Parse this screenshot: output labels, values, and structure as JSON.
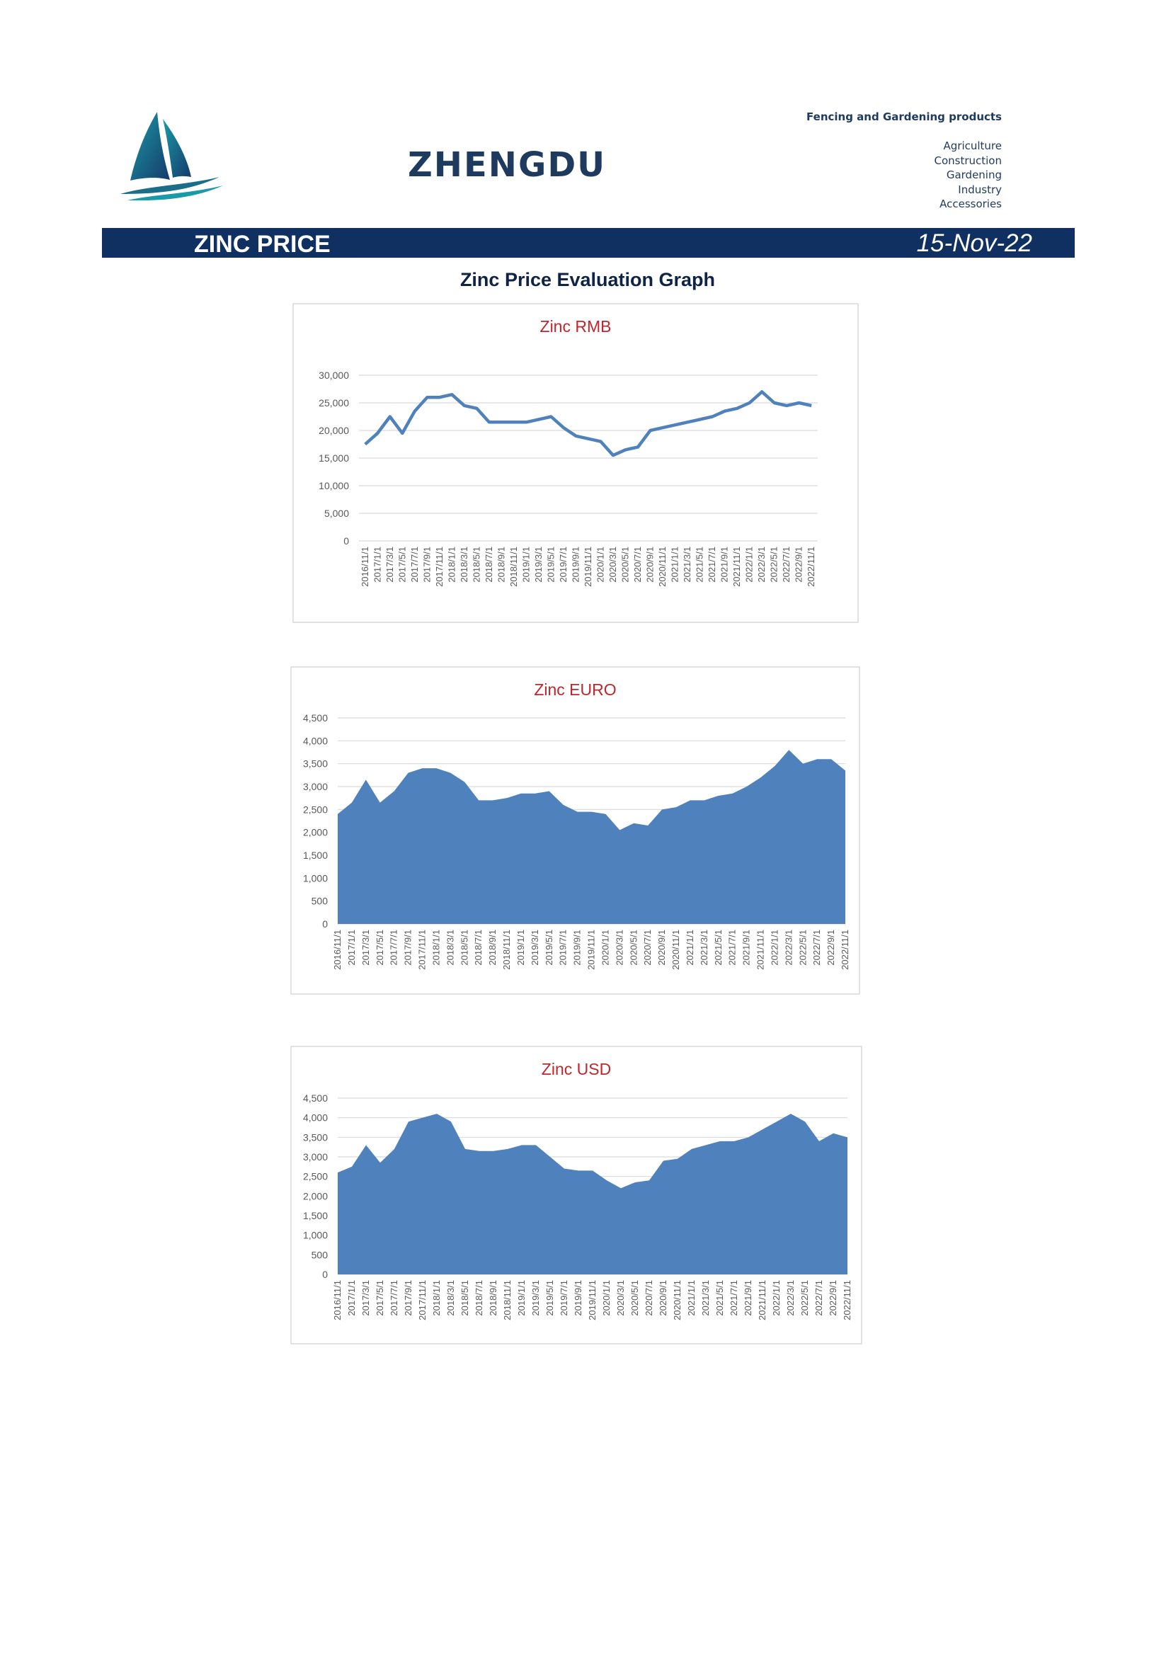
{
  "header": {
    "company": "ZHENGDU",
    "tagline": "Fencing and Gardening products",
    "sectors": [
      "Agriculture",
      "Construction",
      "Gardening",
      "Industry",
      "Accessories"
    ]
  },
  "banner": {
    "title": "ZINC PRICE",
    "date": "15-Nov-22"
  },
  "heading": "Zinc Price Evaluation Graph",
  "chart_data": [
    {
      "type": "line",
      "title": "Zinc RMB",
      "color": "#4f81bd",
      "categories": [
        "2016/11/1",
        "2017/1/1",
        "2017/3/1",
        "2017/5/1",
        "2017/7/1",
        "2017/9/1",
        "2017/11/1",
        "2018/1/1",
        "2018/3/1",
        "2018/5/1",
        "2018/7/1",
        "2018/9/1",
        "2018/11/1",
        "2019/1/1",
        "2019/3/1",
        "2019/5/1",
        "2019/7/1",
        "2019/9/1",
        "2019/11/1",
        "2020/1/1",
        "2020/3/1",
        "2020/5/1",
        "2020/7/1",
        "2020/9/1",
        "2020/11/1",
        "2021/1/1",
        "2021/3/1",
        "2021/5/1",
        "2021/7/1",
        "2021/9/1",
        "2021/11/1",
        "2022/1/1",
        "2022/3/1",
        "2022/5/1",
        "2022/7/1",
        "2022/9/1",
        "2022/11/1"
      ],
      "values": [
        17500,
        19500,
        22500,
        19500,
        23500,
        26000,
        26000,
        26500,
        24500,
        24000,
        21500,
        21500,
        21500,
        21500,
        22000,
        22500,
        20500,
        19000,
        18500,
        18000,
        15500,
        16500,
        17000,
        20000,
        20500,
        21000,
        21500,
        22000,
        22500,
        23500,
        24000,
        25000,
        27000,
        25000,
        24500,
        25000,
        24500
      ],
      "ylim": [
        0,
        30000
      ],
      "yticks": [
        0,
        {
          "value": 5000,
          "label": "5,000"
        },
        {
          "value": 10000,
          "label": "10,000"
        },
        {
          "value": 15000,
          "label": "15,000"
        },
        {
          "value": 20000,
          "label": "20,000"
        },
        {
          "value": 25000,
          "label": "25,000"
        },
        {
          "value": 30000,
          "label": "30,000"
        }
      ],
      "grid": true
    },
    {
      "type": "area",
      "title": "Zinc EURO",
      "color": "#4f81bd",
      "categories": [
        "2016/11/1",
        "2017/1/1",
        "2017/3/1",
        "2017/5/1",
        "2017/7/1",
        "2017/9/1",
        "2017/11/1",
        "2018/1/1",
        "2018/3/1",
        "2018/5/1",
        "2018/7/1",
        "2018/9/1",
        "2018/11/1",
        "2019/1/1",
        "2019/3/1",
        "2019/5/1",
        "2019/7/1",
        "2019/9/1",
        "2019/11/1",
        "2020/1/1",
        "2020/3/1",
        "2020/5/1",
        "2020/7/1",
        "2020/9/1",
        "2020/11/1",
        "2021/1/1",
        "2021/3/1",
        "2021/5/1",
        "2021/7/1",
        "2021/9/1",
        "2021/11/1",
        "2022/1/1",
        "2022/3/1",
        "2022/5/1",
        "2022/7/1",
        "2022/9/1",
        "2022/11/1"
      ],
      "values": [
        2400,
        2650,
        3150,
        2650,
        2900,
        3300,
        3400,
        3400,
        3300,
        3100,
        2700,
        2700,
        2750,
        2850,
        2850,
        2900,
        2600,
        2450,
        2450,
        2400,
        2050,
        2200,
        2150,
        2500,
        2550,
        2700,
        2700,
        2800,
        2850,
        3000,
        3200,
        3450,
        3800,
        3500,
        3600,
        3600,
        3350
      ],
      "ylim": [
        0,
        4500
      ],
      "yticks": [
        0,
        500,
        {
          "value": 1000,
          "label": "1,000"
        },
        {
          "value": 1500,
          "label": "1,500"
        },
        {
          "value": 2000,
          "label": "2,000"
        },
        {
          "value": 2500,
          "label": "2,500"
        },
        {
          "value": 3000,
          "label": "3,000"
        },
        {
          "value": 3500,
          "label": "3,500"
        },
        {
          "value": 4000,
          "label": "4,000"
        },
        {
          "value": 4500,
          "label": "4,500"
        }
      ],
      "grid": true
    },
    {
      "type": "area",
      "title": "Zinc USD",
      "color": "#4f81bd",
      "categories": [
        "2016/11/1",
        "2017/1/1",
        "2017/3/1",
        "2017/5/1",
        "2017/7/1",
        "2017/9/1",
        "2017/11/1",
        "2018/1/1",
        "2018/3/1",
        "2018/5/1",
        "2018/7/1",
        "2018/9/1",
        "2018/11/1",
        "2019/1/1",
        "2019/3/1",
        "2019/5/1",
        "2019/7/1",
        "2019/9/1",
        "2019/11/1",
        "2020/1/1",
        "2020/3/1",
        "2020/5/1",
        "2020/7/1",
        "2020/9/1",
        "2020/11/1",
        "2021/1/1",
        "2021/3/1",
        "2021/5/1",
        "2021/7/1",
        "2021/9/1",
        "2021/11/1",
        "2022/1/1",
        "2022/3/1",
        "2022/5/1",
        "2022/7/1",
        "2022/9/1",
        "2022/11/1"
      ],
      "values": [
        2600,
        2750,
        3300,
        2850,
        3200,
        3900,
        4000,
        4100,
        3900,
        3200,
        3150,
        3150,
        3200,
        3300,
        3300,
        3000,
        2700,
        2650,
        2650,
        2400,
        2200,
        2350,
        2400,
        2900,
        2950,
        3200,
        3300,
        3400,
        3400,
        3500,
        3700,
        3900,
        4100,
        3900,
        3400,
        3600,
        3500
      ],
      "ylim": [
        0,
        4500
      ],
      "yticks": [
        0,
        500,
        {
          "value": 1000,
          "label": "1,000"
        },
        {
          "value": 1500,
          "label": "1,500"
        },
        {
          "value": 2000,
          "label": "2,000"
        },
        {
          "value": 2500,
          "label": "2,500"
        },
        {
          "value": 3000,
          "label": "3,000"
        },
        {
          "value": 3500,
          "label": "3,500"
        },
        {
          "value": 4000,
          "label": "4,000"
        },
        {
          "value": 4500,
          "label": "4,500"
        }
      ],
      "grid": true
    }
  ]
}
